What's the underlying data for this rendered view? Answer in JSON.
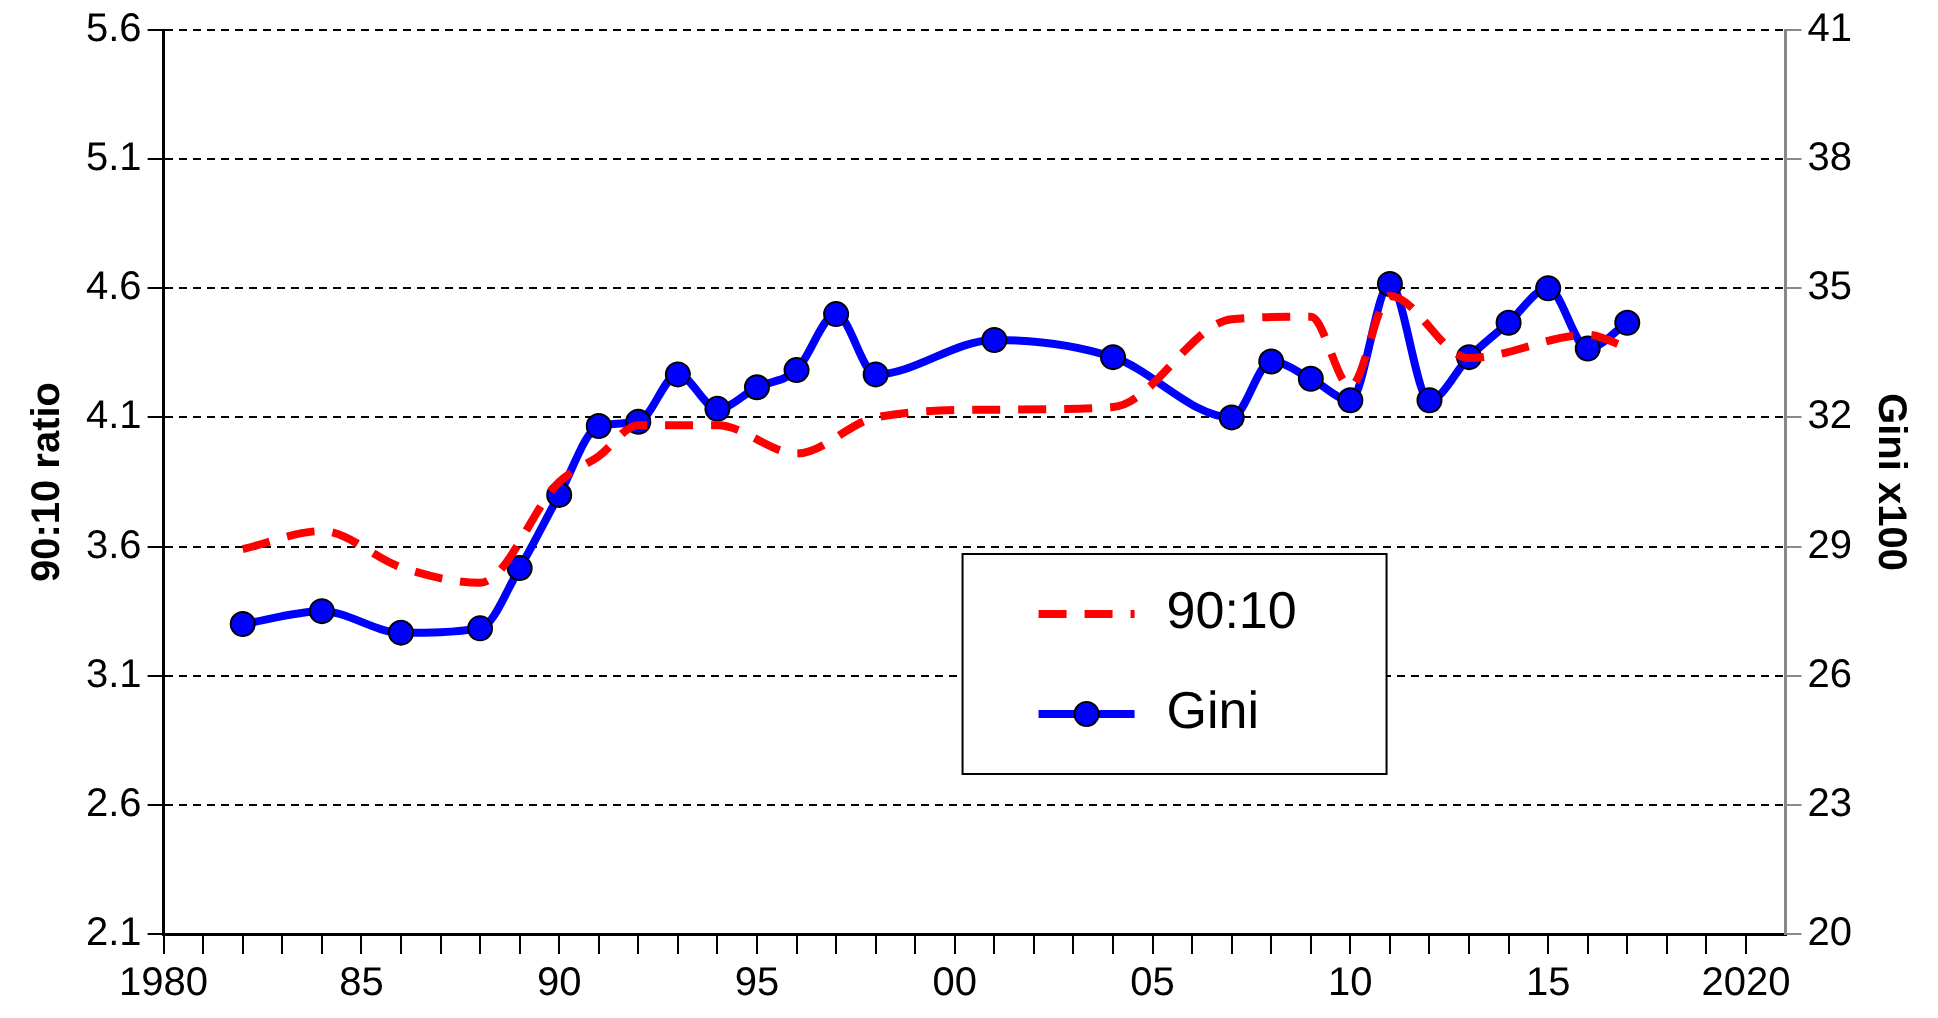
{
  "chart_data": {
    "type": "line",
    "ylabel": "90:10 ratio",
    "y2label": "Gini x100",
    "xlim": [
      1980,
      2021
    ],
    "xticks": [
      {
        "value": 1980,
        "label": "1980"
      },
      {
        "value": 1981,
        "label": null
      },
      {
        "value": 1982,
        "label": null
      },
      {
        "value": 1983,
        "label": null
      },
      {
        "value": 1984,
        "label": null
      },
      {
        "value": 1985,
        "label": "85"
      },
      {
        "value": 1986,
        "label": null
      },
      {
        "value": 1987,
        "label": null
      },
      {
        "value": 1988,
        "label": null
      },
      {
        "value": 1989,
        "label": null
      },
      {
        "value": 1990,
        "label": "90"
      },
      {
        "value": 1991,
        "label": null
      },
      {
        "value": 1992,
        "label": null
      },
      {
        "value": 1993,
        "label": null
      },
      {
        "value": 1994,
        "label": null
      },
      {
        "value": 1995,
        "label": "95"
      },
      {
        "value": 1996,
        "label": null
      },
      {
        "value": 1997,
        "label": null
      },
      {
        "value": 1998,
        "label": null
      },
      {
        "value": 1999,
        "label": null
      },
      {
        "value": 2000,
        "label": "00"
      },
      {
        "value": 2001,
        "label": null
      },
      {
        "value": 2002,
        "label": null
      },
      {
        "value": 2003,
        "label": null
      },
      {
        "value": 2004,
        "label": null
      },
      {
        "value": 2005,
        "label": "05"
      },
      {
        "value": 2006,
        "label": null
      },
      {
        "value": 2007,
        "label": null
      },
      {
        "value": 2008,
        "label": null
      },
      {
        "value": 2009,
        "label": null
      },
      {
        "value": 2010,
        "label": "10"
      },
      {
        "value": 2011,
        "label": null
      },
      {
        "value": 2012,
        "label": null
      },
      {
        "value": 2013,
        "label": null
      },
      {
        "value": 2014,
        "label": null
      },
      {
        "value": 2015,
        "label": "15"
      },
      {
        "value": 2016,
        "label": null
      },
      {
        "value": 2017,
        "label": null
      },
      {
        "value": 2018,
        "label": null
      },
      {
        "value": 2019,
        "label": null
      },
      {
        "value": 2020,
        "label": "2020"
      }
    ],
    "ylim": [
      2.1,
      5.6
    ],
    "yticks": [
      2.1,
      2.6,
      3.1,
      3.6,
      4.1,
      4.6,
      5.1,
      5.6
    ],
    "y2lim": [
      20,
      41
    ],
    "y2ticks": [
      20,
      23,
      26,
      29,
      32,
      35,
      38,
      41
    ],
    "grid": "y",
    "legend": "bottom",
    "series": [
      {
        "name": "90:10",
        "color": "#ff0000",
        "marker": "none",
        "line_style": "dashed",
        "x": [
          1982,
          1984,
          1986,
          1988,
          1990,
          1991,
          1992,
          1993,
          1994,
          1996,
          1998,
          2001,
          2004,
          2007,
          2009,
          2010,
          2011,
          2013,
          2016,
          2017
        ],
        "values": [
          3.59,
          3.66,
          3.52,
          3.46,
          3.85,
          3.95,
          4.07,
          4.07,
          4.07,
          3.96,
          4.1,
          4.13,
          4.14,
          4.48,
          4.49,
          4.22,
          4.57,
          4.33,
          4.42,
          4.37
        ]
      },
      {
        "name": "Gini",
        "color": "#0000ff",
        "marker": "circle",
        "line_style": "solid",
        "axis": "y2",
        "x": [
          1982,
          1984,
          1986,
          1988,
          1989,
          1990,
          1991,
          1992,
          1993,
          1994,
          1995,
          1996,
          1997,
          1998,
          2001,
          2004,
          2007,
          2008,
          2009,
          2010,
          2011,
          2012,
          2013,
          2014,
          2015,
          2016,
          2017
        ],
        "values": [
          27.2,
          27.5,
          27.0,
          27.1,
          28.5,
          30.2,
          31.8,
          31.9,
          33.0,
          32.2,
          32.7,
          33.1,
          34.4,
          33.0,
          33.8,
          33.4,
          32.0,
          33.3,
          32.9,
          32.4,
          35.1,
          32.4,
          33.4,
          34.2,
          35.0,
          33.6,
          34.2
        ]
      }
    ]
  }
}
